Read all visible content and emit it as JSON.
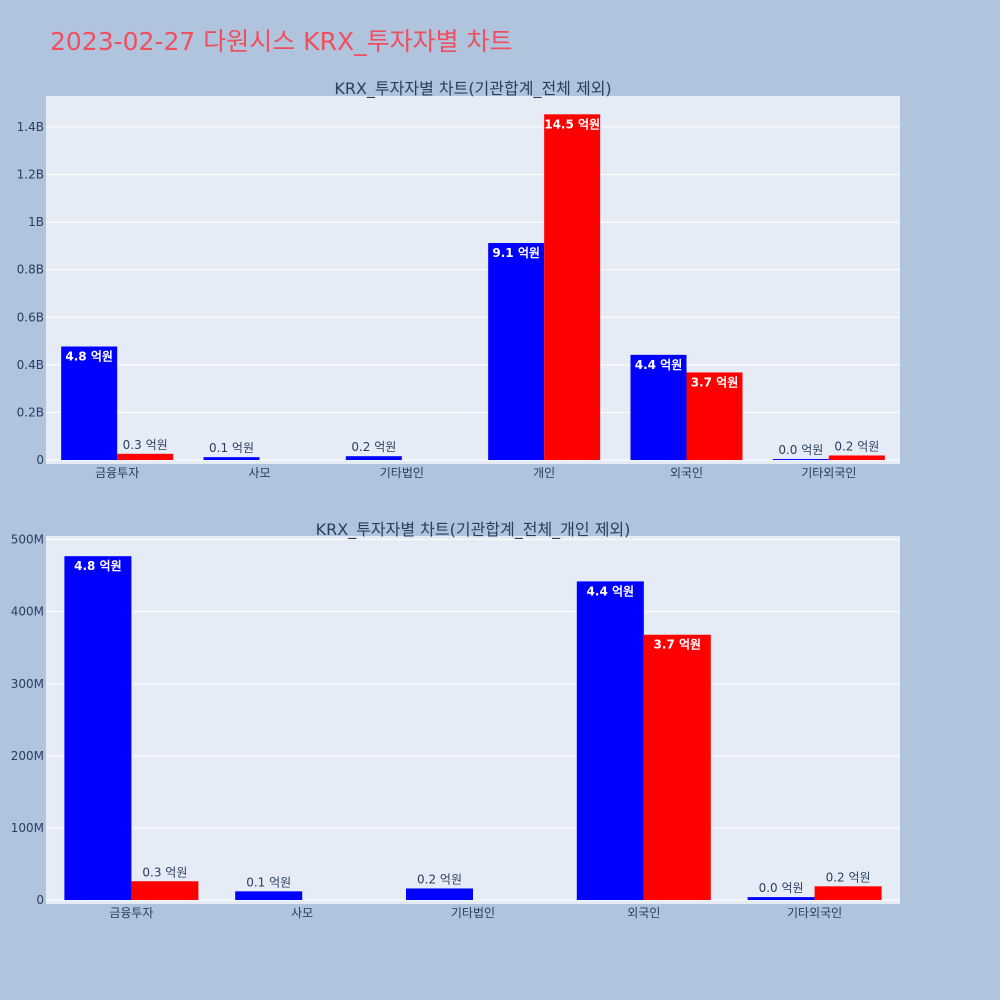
{
  "page": {
    "title": "2023-02-27 다원시스 KRX_투자자별 차트"
  },
  "chart_data": [
    {
      "type": "bar",
      "title": "KRX_투자자별 차트(기관합계_전체 제외)",
      "categories": [
        "금융투자",
        "사모",
        "기타법인",
        "개인",
        "외국인",
        "기타외국인"
      ],
      "series": [
        {
          "color": "#0000ff",
          "values": [
            477000000,
            12000000,
            16000000,
            912000000,
            442000000,
            4000000
          ],
          "labels": [
            "4.8 억원",
            "0.1 억원",
            "0.2 억원",
            "9.1 억원",
            "4.4 억원",
            "0.0 억원"
          ]
        },
        {
          "color": "#ff0000",
          "values": [
            26000000,
            0,
            0,
            1453000000,
            368000000,
            19000000
          ],
          "labels": [
            "0.3 억원",
            "",
            "",
            "14.5 억원",
            "3.7 억원",
            "0.2 억원"
          ]
        }
      ],
      "ylim": [
        0,
        1530000000
      ],
      "ytick_values": [
        0,
        200000000,
        400000000,
        600000000,
        800000000,
        1000000000,
        1200000000,
        1400000000
      ],
      "ytick_labels": [
        "0",
        "0.2B",
        "0.4B",
        "0.6B",
        "0.8B",
        "1B",
        "1.2B",
        "1.4B"
      ],
      "grid": true
    },
    {
      "type": "bar",
      "title": "KRX_투자자별 차트(기관합계_전체_개인 제외)",
      "categories": [
        "금융투자",
        "사모",
        "기타법인",
        "외국인",
        "기타외국인"
      ],
      "series": [
        {
          "color": "#0000ff",
          "values": [
            477000000,
            12000000,
            16000000,
            442000000,
            4000000
          ],
          "labels": [
            "4.8 억원",
            "0.1 억원",
            "0.2 억원",
            "4.4 억원",
            "0.0 억원"
          ]
        },
        {
          "color": "#ff0000",
          "values": [
            26000000,
            0,
            0,
            368000000,
            19000000
          ],
          "labels": [
            "0.3 억원",
            "",
            "",
            "3.7 억원",
            "0.2 억원"
          ]
        }
      ],
      "ylim": [
        0,
        505000000
      ],
      "ytick_values": [
        0,
        100000000,
        200000000,
        300000000,
        400000000,
        500000000
      ],
      "ytick_labels": [
        "0",
        "100M",
        "200M",
        "300M",
        "400M",
        "500M"
      ],
      "grid": true
    }
  ]
}
